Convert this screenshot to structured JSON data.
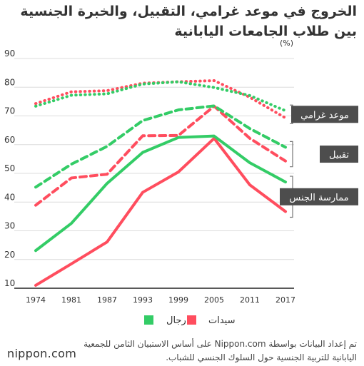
{
  "title": "الخروج في موعد غرامي، التقبيل، والخبرة الجنسية بين طلاب الجامعات اليابانية",
  "source": "تم إعداد البيانات بواسطة Nippon.com على أساس الاستبيان الثامن للجمعية اليابانية للتربية الجنسية حول السلوك الجنسي للشباب.",
  "brand": "nippon.com",
  "colors": {
    "men": "#33cc66",
    "women": "#ff4d5e",
    "grid": "#dcdcdc",
    "axis": "#222222",
    "label_box": "#4d4d4d",
    "label_text": "#ffffff"
  },
  "chart_data": {
    "type": "line",
    "x": [
      "1974",
      "1981",
      "1987",
      "1993",
      "1999",
      "2005",
      "2011",
      "2017"
    ],
    "ylim": [
      10,
      90
    ],
    "yticks": [
      "10",
      "20",
      "30",
      "40",
      "50",
      "60",
      "70",
      "80",
      "90"
    ],
    "y_unit": "(%)",
    "grid": true,
    "legend": [
      {
        "label": "رجال",
        "key": "men"
      },
      {
        "label": "سيدات",
        "key": "women"
      }
    ],
    "groups": [
      {
        "label": "موعد غرامي",
        "style": "dotted",
        "men": [
          73.4,
          77.2,
          77.7,
          81.1,
          81.9,
          79.9,
          77.1,
          71.8
        ],
        "women": [
          74.3,
          78.4,
          78.8,
          81.4,
          81.9,
          82.3,
          76.5,
          69.3
        ]
      },
      {
        "label": "تقبيل",
        "style": "dashed",
        "men": [
          45.2,
          53.2,
          59.4,
          68.4,
          72.1,
          73.5,
          65.6,
          59.1
        ],
        "women": [
          38.9,
          48.4,
          49.7,
          63.1,
          63.2,
          73.4,
          62.2,
          54.3
        ]
      },
      {
        "label": "ممارسة الجنس",
        "style": "solid",
        "men": [
          23.1,
          32.6,
          46.5,
          57.3,
          62.5,
          63.0,
          53.7,
          47.0
        ],
        "women": [
          11.0,
          18.5,
          26.1,
          43.4,
          50.5,
          62.2,
          46.0,
          36.7
        ]
      }
    ]
  }
}
